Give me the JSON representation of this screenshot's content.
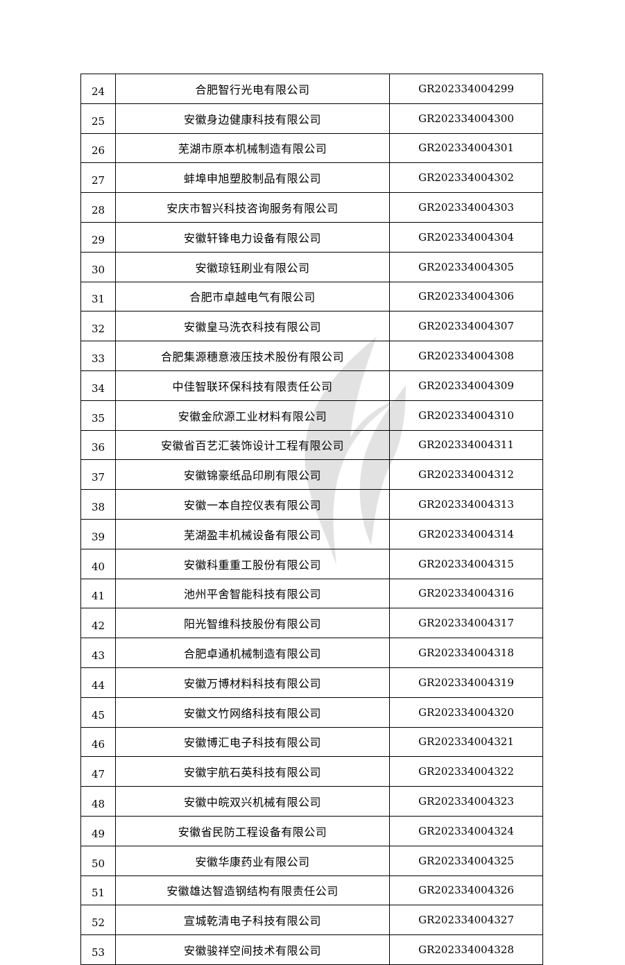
{
  "table": {
    "rows": [
      {
        "no": "24",
        "name": "合肥智行光电有限公司",
        "code": "GR202334004299"
      },
      {
        "no": "25",
        "name": "安徽身边健康科技有限公司",
        "code": "GR202334004300"
      },
      {
        "no": "26",
        "name": "芜湖市原本机械制造有限公司",
        "code": "GR202334004301"
      },
      {
        "no": "27",
        "name": "蚌埠申旭塑胶制品有限公司",
        "code": "GR202334004302"
      },
      {
        "no": "28",
        "name": "安庆市智兴科技咨询服务有限公司",
        "code": "GR202334004303"
      },
      {
        "no": "29",
        "name": "安徽轩锋电力设备有限公司",
        "code": "GR202334004304"
      },
      {
        "no": "30",
        "name": "安徽琼钰刷业有限公司",
        "code": "GR202334004305"
      },
      {
        "no": "31",
        "name": "合肥市卓越电气有限公司",
        "code": "GR202334004306"
      },
      {
        "no": "32",
        "name": "安徽皇马洗衣科技有限公司",
        "code": "GR202334004307"
      },
      {
        "no": "33",
        "name": "合肥集源穗意液压技术股份有限公司",
        "code": "GR202334004308"
      },
      {
        "no": "34",
        "name": "中佳智联环保科技有限责任公司",
        "code": "GR202334004309"
      },
      {
        "no": "35",
        "name": "安徽金欣源工业材料有限公司",
        "code": "GR202334004310"
      },
      {
        "no": "36",
        "name": "安徽省百艺汇装饰设计工程有限公司",
        "code": "GR202334004311"
      },
      {
        "no": "37",
        "name": "安徽锦豪纸品印刷有限公司",
        "code": "GR202334004312"
      },
      {
        "no": "38",
        "name": "安徽一本自控仪表有限公司",
        "code": "GR202334004313"
      },
      {
        "no": "39",
        "name": "芜湖盈丰机械设备有限公司",
        "code": "GR202334004314"
      },
      {
        "no": "40",
        "name": "安徽科重重工股份有限公司",
        "code": "GR202334004315"
      },
      {
        "no": "41",
        "name": "池州平舍智能科技有限公司",
        "code": "GR202334004316"
      },
      {
        "no": "42",
        "name": "阳光智维科技股份有限公司",
        "code": "GR202334004317"
      },
      {
        "no": "43",
        "name": "合肥卓通机械制造有限公司",
        "code": "GR202334004318"
      },
      {
        "no": "44",
        "name": "安徽万博材料科技有限公司",
        "code": "GR202334004319"
      },
      {
        "no": "45",
        "name": "安徽文竹网络科技有限公司",
        "code": "GR202334004320"
      },
      {
        "no": "46",
        "name": "安徽博汇电子科技有限公司",
        "code": "GR202334004321"
      },
      {
        "no": "47",
        "name": "安徽宇航石英科技有限公司",
        "code": "GR202334004322"
      },
      {
        "no": "48",
        "name": "安徽中皖双兴机械有限公司",
        "code": "GR202334004323"
      },
      {
        "no": "49",
        "name": "安徽省民防工程设备有限公司",
        "code": "GR202334004324"
      },
      {
        "no": "50",
        "name": "安徽华康药业有限公司",
        "code": "GR202334004325"
      },
      {
        "no": "51",
        "name": "安徽雄达智造钢结构有限责任公司",
        "code": "GR202334004326"
      },
      {
        "no": "52",
        "name": "宣城乾清电子科技有限公司",
        "code": "GR202334004327"
      },
      {
        "no": "53",
        "name": "安徽骏祥空间技术有限公司",
        "code": "GR202334004328"
      }
    ]
  },
  "watermark": {
    "icon": "flame-logo-watermark",
    "color": "#808080"
  }
}
